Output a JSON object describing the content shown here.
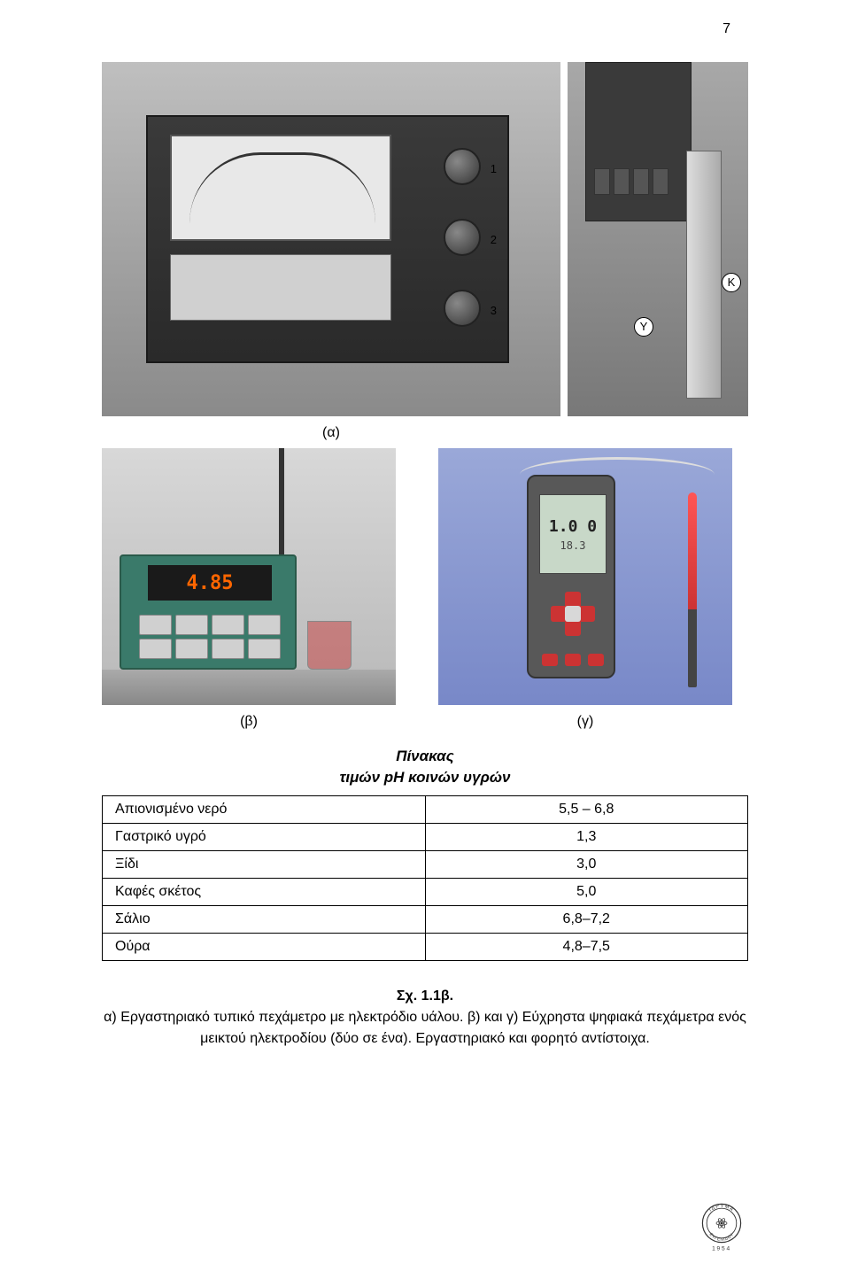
{
  "page_number": "7",
  "images": {
    "a": {
      "label": "(α)",
      "knob_labels": [
        "1",
        "2",
        "3"
      ],
      "markers": {
        "y": "Y",
        "k": "K"
      }
    },
    "b": {
      "label": "(β)",
      "display_value": "4.85"
    },
    "c": {
      "label": "(γ)",
      "display_line1": "1.0 0",
      "display_line2": "18.3"
    }
  },
  "table": {
    "title_line1": "Πίνακας",
    "title_line2": "τιμών pH κοινών υγρών",
    "rows": [
      {
        "name": "Απιονισμένο νερό",
        "value": "5,5 – 6,8"
      },
      {
        "name": "Γαστρικό υγρό",
        "value": "1,3"
      },
      {
        "name": "Ξίδι",
        "value": "3,0"
      },
      {
        "name": "Καφές σκέτος",
        "value": "5,0"
      },
      {
        "name": "Σάλιο",
        "value": "6,8–7,2"
      },
      {
        "name": "Ούρα",
        "value": "4,8–7,5"
      }
    ]
  },
  "caption": {
    "label": "Σχ. 1.1β.",
    "text": "α) Εργαστηριακό τυπικό πεχάμετρο με ηλεκτρόδιο υάλου. β) και γ) Εύχρηστα ψηφιακά πεχάμετρα ενός μεικτού ηλεκτροδίου (δύο σε ένα). Εργαστηριακό και φορητό αντίστοιχα."
  },
  "logo": {
    "year": "1954",
    "text_top": "ΙΔΡΥΜΑ",
    "text_bottom": "ΕΥΓΕΝΙΔΟΥ"
  },
  "colors": {
    "page_bg": "#ffffff",
    "text": "#000000",
    "table_border": "#000000",
    "image_a_bg": "#a8a8a8",
    "meter_box": "#2a2a2a",
    "meter_display": "#e8e8e8",
    "image_b_bg": "#c8c8c8",
    "ph_meter_body": "#3a7a6a",
    "ph_display_bg": "#1a1a1a",
    "ph_display_fg": "#ff6600",
    "image_c_bg": "#8898d0",
    "handheld_body": "#585858",
    "handheld_display": "#c8d8c8",
    "red_button": "#cc3333",
    "probe_red": "#ff5555",
    "logo_stroke": "#333333"
  },
  "typography": {
    "body_font": "Arial, Helvetica, sans-serif",
    "body_size_pt": 12,
    "title_style": "italic bold"
  }
}
